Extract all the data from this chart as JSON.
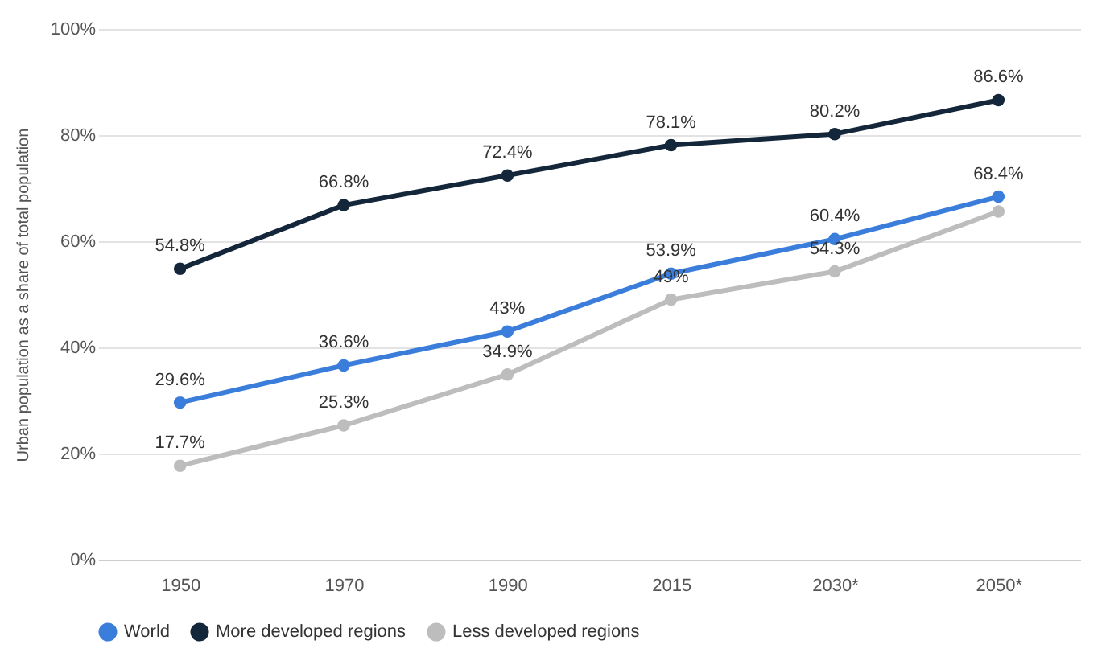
{
  "chart_data": {
    "type": "line",
    "ylabel": "Urban population as a share of total population",
    "categories": [
      "1950",
      "1970",
      "1990",
      "2015",
      "2030*",
      "2050*"
    ],
    "series": [
      {
        "name": "World",
        "color": "#3a7ddb",
        "values": [
          29.6,
          36.6,
          43,
          53.9,
          60.4,
          68.4
        ],
        "value_labels": [
          "29.6%",
          "36.6%",
          "43%",
          "53.9%",
          "60.4%",
          "68.4%"
        ]
      },
      {
        "name": "More developed regions",
        "color": "#14263a",
        "values": [
          54.8,
          66.8,
          72.4,
          78.1,
          80.2,
          86.6
        ],
        "value_labels": [
          "54.8%",
          "66.8%",
          "72.4%",
          "78.1%",
          "80.2%",
          "86.6%"
        ]
      },
      {
        "name": "Less developed regions",
        "color": "#bdbdbd",
        "values": [
          17.7,
          25.3,
          34.9,
          49,
          54.3,
          65.6
        ],
        "value_labels": [
          "17.7%",
          "25.3%",
          "34.9%",
          "49%",
          "54.3%",
          null
        ]
      }
    ],
    "ylim": [
      0,
      100
    ],
    "yticks": [
      {
        "value": 0,
        "label": "0%"
      },
      {
        "value": 20,
        "label": "20%"
      },
      {
        "value": 40,
        "label": "40%"
      },
      {
        "value": 60,
        "label": "60%"
      },
      {
        "value": 80,
        "label": "80%"
      },
      {
        "value": 100,
        "label": "100%"
      }
    ],
    "grid": "y",
    "legend": "bottom",
    "marker": "circle",
    "line_style": "solid"
  }
}
